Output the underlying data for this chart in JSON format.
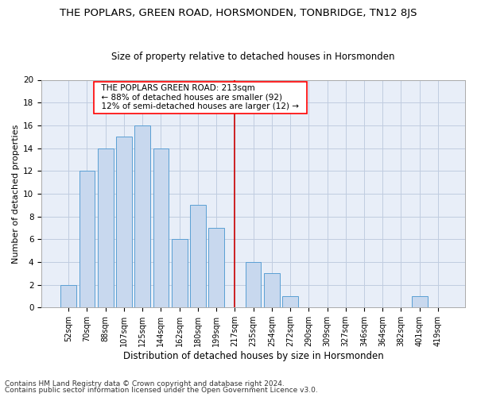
{
  "title": "THE POPLARS, GREEN ROAD, HORSMONDEN, TONBRIDGE, TN12 8JS",
  "subtitle": "Size of property relative to detached houses in Horsmonden",
  "xlabel": "Distribution of detached houses by size in Horsmonden",
  "ylabel": "Number of detached properties",
  "footnote1": "Contains HM Land Registry data © Crown copyright and database right 2024.",
  "footnote2": "Contains public sector information licensed under the Open Government Licence v3.0.",
  "annotation_line1": "  THE POPLARS GREEN ROAD: 213sqm  ",
  "annotation_line2": "  ← 88% of detached houses are smaller (92)  ",
  "annotation_line3": "  12% of semi-detached houses are larger (12) →  ",
  "bar_labels": [
    "52sqm",
    "70sqm",
    "88sqm",
    "107sqm",
    "125sqm",
    "144sqm",
    "162sqm",
    "180sqm",
    "199sqm",
    "217sqm",
    "235sqm",
    "254sqm",
    "272sqm",
    "290sqm",
    "309sqm",
    "327sqm",
    "346sqm",
    "364sqm",
    "382sqm",
    "401sqm",
    "419sqm"
  ],
  "bar_values": [
    2,
    12,
    14,
    15,
    16,
    14,
    6,
    9,
    7,
    0,
    4,
    3,
    1,
    0,
    0,
    0,
    0,
    0,
    0,
    1,
    0
  ],
  "bar_color": "#c8d8ee",
  "bar_edge_color": "#5a9fd4",
  "red_line_index": 9,
  "red_line_color": "#cc0000",
  "ylim": [
    0,
    20
  ],
  "yticks": [
    0,
    2,
    4,
    6,
    8,
    10,
    12,
    14,
    16,
    18,
    20
  ],
  "bg_color": "#ffffff",
  "plot_bg_color": "#e8eef8",
  "grid_color": "#c0cce0",
  "title_fontsize": 9.5,
  "subtitle_fontsize": 8.5,
  "xlabel_fontsize": 8.5,
  "ylabel_fontsize": 8,
  "tick_fontsize": 7,
  "annotation_fontsize": 7.5,
  "footnote_fontsize": 6.5
}
